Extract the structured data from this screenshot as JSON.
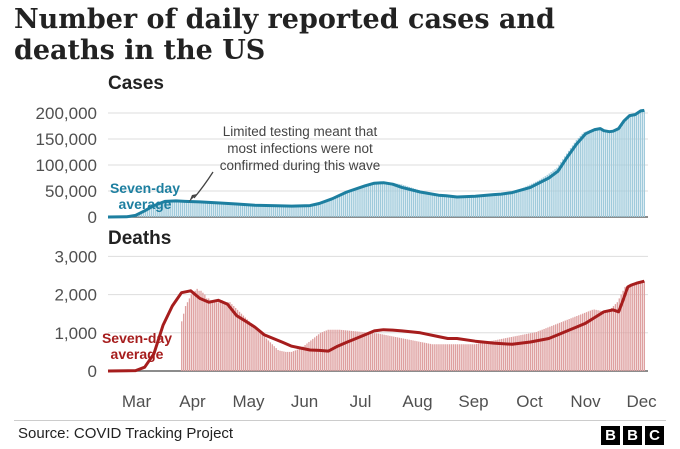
{
  "title": "Number of daily reported cases and deaths in the US",
  "source": "Source: COVID Tracking Project",
  "logo": [
    "B",
    "B",
    "C"
  ],
  "colors": {
    "cases_line": "#1d7fa0",
    "cases_bar": "#9fcadb",
    "deaths_line": "#a61d1d",
    "deaths_bar": "#dea0a0",
    "text": "#222222"
  },
  "chart_data": [
    {
      "type": "bar",
      "title": "Cases",
      "x_unit": "days since 1 Mar 2020",
      "xlim": [
        0,
        294
      ],
      "ylim": [
        0,
        225000
      ],
      "yticks": [
        0,
        50000,
        100000,
        150000,
        200000
      ],
      "ytick_labels": [
        "0",
        "50,000",
        "100,000",
        "150,000",
        "200,000"
      ],
      "months": [
        "Mar",
        "Apr",
        "May",
        "Jun",
        "Jul",
        "Aug",
        "Sep",
        "Oct",
        "Nov",
        "Dec"
      ],
      "month_start_day": [
        0,
        31,
        61,
        92,
        122,
        153,
        184,
        214,
        245,
        275
      ],
      "series": [
        {
          "name": "Seven-day average",
          "x": [
            0,
            10,
            15,
            20,
            25,
            31,
            37,
            42,
            50,
            61,
            70,
            80,
            92,
            100,
            110,
            115,
            122,
            130,
            140,
            145,
            150,
            155,
            160,
            170,
            180,
            184,
            190,
            200,
            210,
            214,
            220,
            230,
            240,
            245,
            250,
            255,
            260,
            263,
            265,
            268,
            270,
            273,
            275,
            278,
            281,
            284,
            287,
            290,
            292
          ],
          "values": [
            0,
            300,
            3000,
            12000,
            22000,
            30000,
            31000,
            30000,
            29000,
            27000,
            25000,
            22500,
            21500,
            21000,
            22000,
            26000,
            35000,
            48000,
            60000,
            65000,
            66000,
            63000,
            57000,
            48000,
            42000,
            41000,
            38500,
            40000,
            43000,
            44000,
            47000,
            57000,
            75000,
            88000,
            115000,
            140000,
            160000,
            165000,
            168000,
            170000,
            166000,
            164000,
            165000,
            170000,
            185000,
            195000,
            197000,
            204000,
            205000
          ]
        }
      ],
      "daily_reported": {
        "x_start": 12,
        "x_end": 292,
        "values": [
          1000,
          1500,
          2000,
          3500,
          5000,
          7000,
          9500,
          12000,
          14500,
          17000,
          19500,
          22000,
          24000,
          25500,
          27000,
          28500,
          29500,
          30000,
          30500,
          30800,
          31000,
          31000,
          30900,
          30700,
          30500,
          30300,
          30100,
          30000,
          29900,
          29800,
          29600,
          29400,
          29200,
          29000,
          28800,
          28600,
          28400,
          28200,
          28000,
          27800,
          27600,
          27400,
          27200,
          27000,
          26800,
          26600,
          26400,
          26200,
          26000,
          25800,
          25600,
          25400,
          25200,
          25000,
          24800,
          24600,
          24400,
          24200,
          24000,
          23800,
          23600,
          23400,
          23200,
          23000,
          22800,
          22600,
          22500,
          22400,
          22300,
          22200,
          22100,
          22000,
          21900,
          21800,
          21700,
          21600,
          21500,
          21500,
          21400,
          21400,
          21300,
          21300,
          21200,
          21200,
          21100,
          21100,
          21000,
          21000,
          21000,
          21100,
          21200,
          21400,
          21600,
          21800,
          22000,
          22800,
          23600,
          24400,
          25200,
          26000,
          27300,
          28600,
          29900,
          31200,
          32500,
          34300,
          36100,
          37900,
          39700,
          41500,
          43100,
          44700,
          46300,
          47900,
          49500,
          50700,
          51900,
          53100,
          54300,
          55500,
          56700,
          57900,
          59100,
          60300,
          61500,
          62600,
          63300,
          64000,
          64700,
          65400,
          65700,
          65900,
          66000,
          66000,
          66000,
          65800,
          65200,
          64600,
          64000,
          63400,
          62600,
          61400,
          60200,
          59000,
          57800,
          56700,
          55400,
          54100,
          52800,
          51500,
          50400,
          49300,
          48200,
          47100,
          46000,
          45200,
          44500,
          43800,
          43200,
          42500,
          42200,
          41800,
          41400,
          41100,
          40800,
          40500,
          40000,
          39600,
          39100,
          38700,
          38500,
          38600,
          38800,
          39000,
          39200,
          39400,
          39600,
          39800,
          40000,
          40200,
          40500,
          40800,
          41100,
          41400,
          41700,
          42000,
          42300,
          42600,
          42900,
          43200,
          43600,
          44100,
          44600,
          45100,
          45700,
          46300,
          47100,
          48100,
          49200,
          50200,
          51400,
          53200,
          55000,
          56800,
          58600,
          60400,
          62200,
          64000,
          65800,
          67600,
          69400,
          71500,
          73900,
          76200,
          78600,
          81000,
          83600,
          86400,
          89200,
          92000,
          94800,
          100400,
          105800,
          111200,
          116600,
          122000,
          127200,
          132400,
          137600,
          142800,
          148000,
          152000,
          156000,
          160000,
          163200,
          164600,
          165900,
          167200,
          168500,
          169500,
          170000,
          170000,
          168100,
          166000,
          166000,
          165000,
          164000,
          163300,
          164000,
          164600,
          166000,
          168000,
          170000,
          175000,
          180000,
          185000,
          188000,
          192000,
          195000,
          196000,
          197000,
          199000,
          202000,
          204000,
          205000,
          205000
        ]
      },
      "annotations": [
        "Limited testing meant that",
        "most infections were not",
        "confirmed during this wave"
      ],
      "avg_label": [
        "Seven-day",
        "average"
      ]
    },
    {
      "type": "bar",
      "title": "Deaths",
      "x_unit": "days since 1 Mar 2020",
      "xlim": [
        0,
        294
      ],
      "ylim": [
        0,
        3350
      ],
      "yticks": [
        0,
        1000,
        2000,
        3000
      ],
      "ytick_labels": [
        "0",
        "1,000",
        "2,000",
        "3,000"
      ],
      "months": [
        "Mar",
        "Apr",
        "May",
        "Jun",
        "Jul",
        "Aug",
        "Sep",
        "Oct",
        "Nov",
        "Dec"
      ],
      "month_start_day": [
        0,
        31,
        61,
        92,
        122,
        153,
        184,
        214,
        245,
        275
      ],
      "series": [
        {
          "name": "Seven-day average",
          "x": [
            0,
            15,
            20,
            25,
            30,
            35,
            40,
            45,
            50,
            55,
            60,
            65,
            70,
            75,
            80,
            85,
            90,
            95,
            100,
            105,
            110,
            115,
            120,
            125,
            130,
            135,
            140,
            145,
            150,
            155,
            160,
            170,
            180,
            185,
            190,
            200,
            210,
            220,
            230,
            240,
            245,
            250,
            255,
            260,
            265,
            270,
            275,
            278,
            280,
            283,
            285,
            288,
            292
          ],
          "values": [
            0,
            10,
            100,
            450,
            1200,
            1700,
            2050,
            2100,
            1900,
            1800,
            1850,
            1750,
            1450,
            1300,
            1150,
            950,
            850,
            750,
            650,
            600,
            550,
            540,
            520,
            650,
            750,
            850,
            950,
            1050,
            1080,
            1070,
            1050,
            1000,
            900,
            850,
            850,
            780,
            730,
            700,
            760,
            850,
            950,
            1050,
            1150,
            1250,
            1400,
            1550,
            1600,
            1550,
            1800,
            2200,
            2250,
            2300,
            2350
          ]
        }
      ],
      "daily_reported": {
        "x_start": 16,
        "x_end": 292,
        "values": [
          0,
          0,
          0,
          0,
          0,
          0,
          0,
          0,
          0,
          0,
          0,
          0,
          0,
          0,
          0,
          0,
          0,
          0,
          0,
          0,
          0,
          0,
          0,
          1300,
          1500,
          1700,
          1800,
          1900,
          2000,
          2050,
          2100,
          2150,
          2100,
          2100,
          2050,
          2000,
          1900,
          1900,
          1850,
          1800,
          1800,
          1800,
          1800,
          1850,
          1850,
          1800,
          1800,
          1800,
          1800,
          1750,
          1700,
          1650,
          1600,
          1550,
          1500,
          1450,
          1400,
          1350,
          1300,
          1250,
          1200,
          1150,
          1100,
          1050,
          1000,
          950,
          900,
          850,
          800,
          750,
          700,
          650,
          600,
          550,
          530,
          520,
          510,
          500,
          500,
          500,
          500,
          520,
          540,
          560,
          580,
          600,
          640,
          680,
          720,
          760,
          800,
          840,
          880,
          920,
          960,
          1000,
          1020,
          1040,
          1060,
          1080,
          1080,
          1080,
          1080,
          1080,
          1080,
          1080,
          1075,
          1070,
          1065,
          1060,
          1055,
          1050,
          1045,
          1040,
          1035,
          1030,
          1025,
          1020,
          1015,
          1010,
          1005,
          1000,
          995,
          990,
          985,
          980,
          970,
          960,
          950,
          940,
          930,
          920,
          910,
          900,
          890,
          880,
          870,
          860,
          850,
          840,
          830,
          820,
          810,
          800,
          790,
          780,
          770,
          760,
          750,
          740,
          730,
          720,
          710,
          700,
          700,
          700,
          700,
          700,
          700,
          700,
          700,
          700,
          700,
          700,
          700,
          700,
          700,
          700,
          700,
          700,
          700,
          700,
          700,
          700,
          700,
          700,
          710,
          720,
          730,
          740,
          750,
          760,
          770,
          780,
          790,
          800,
          810,
          820,
          830,
          840,
          850,
          860,
          870,
          880,
          890,
          900,
          910,
          920,
          930,
          940,
          950,
          960,
          970,
          980,
          990,
          1000,
          1010,
          1020,
          1040,
          1060,
          1080,
          1100,
          1120,
          1140,
          1160,
          1180,
          1200,
          1220,
          1240,
          1260,
          1280,
          1300,
          1320,
          1340,
          1360,
          1380,
          1400,
          1420,
          1440,
          1460,
          1480,
          1500,
          1520,
          1540,
          1560,
          1580,
          1600,
          1610,
          1600,
          1590,
          1580,
          1570,
          1560,
          1560,
          1580,
          1600,
          1650,
          1700,
          1750,
          1800,
          1900,
          2000,
          2100,
          2200,
          2200,
          2250,
          2250,
          2300,
          2300,
          2300,
          2350,
          2350,
          2350,
          2350
        ]
      },
      "avg_label": [
        "Seven-day",
        "average"
      ]
    }
  ]
}
